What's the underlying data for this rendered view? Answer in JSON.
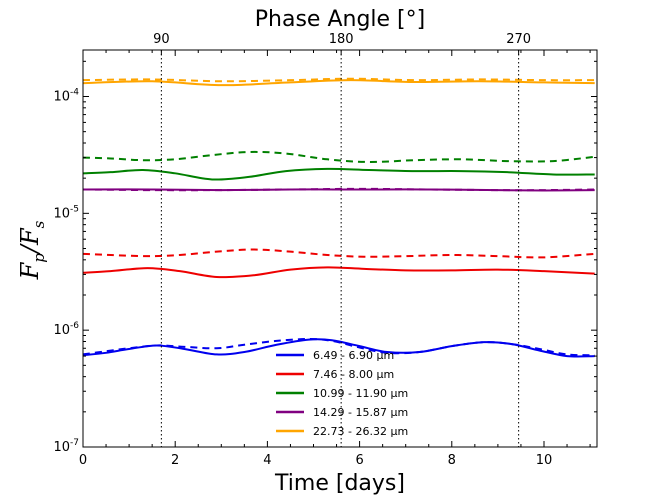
{
  "chart_data": {
    "type": "line",
    "title": "Phase Angle [°]",
    "xlabel": "Time [days]",
    "ylabel": "F_p / F_s",
    "xlim": [
      0,
      11.15
    ],
    "ylim": [
      1e-07,
      0.00025
    ],
    "yscale": "log",
    "xticks": [
      0,
      2,
      4,
      6,
      8,
      10
    ],
    "xtick_labels": [
      "0",
      "2",
      "4",
      "6",
      "8",
      "10"
    ],
    "yticks": [
      1e-07,
      1e-06,
      1e-05,
      0.0001
    ],
    "ytick_labels": [
      {
        "base": "10",
        "exp": "-7"
      },
      {
        "base": "10",
        "exp": "-6"
      },
      {
        "base": "10",
        "exp": "-5"
      },
      {
        "base": "10",
        "exp": "-4"
      }
    ],
    "top_axis": {
      "ticks": [
        {
          "x": 1.7,
          "label": "90"
        },
        {
          "x": 5.6,
          "label": "180"
        },
        {
          "x": 9.45,
          "label": "270"
        }
      ]
    },
    "grid": false,
    "legend_position": "lower-center",
    "series": [
      {
        "name": "6.49 - 6.90 μm",
        "color": "#0000ee",
        "solid": [
          [
            0,
            6.1e-07
          ],
          [
            0.5,
            6.4e-07
          ],
          [
            1,
            6.9e-07
          ],
          [
            1.6,
            7.4e-07
          ],
          [
            2.2,
            6.9e-07
          ],
          [
            2.9,
            6.2e-07
          ],
          [
            3.5,
            6.5e-07
          ],
          [
            4.2,
            7.5e-07
          ],
          [
            4.9,
            8.3e-07
          ],
          [
            5.4,
            8.2e-07
          ],
          [
            6.0,
            7.3e-07
          ],
          [
            6.6,
            6.5e-07
          ],
          [
            7.3,
            6.5e-07
          ],
          [
            8.0,
            7.3e-07
          ],
          [
            8.7,
            7.9e-07
          ],
          [
            9.3,
            7.6e-07
          ],
          [
            9.9,
            6.7e-07
          ],
          [
            10.5,
            6e-07
          ],
          [
            11.1,
            6e-07
          ]
        ],
        "dashed": [
          [
            0,
            6.2e-07
          ],
          [
            0.5,
            6.6e-07
          ],
          [
            1,
            7e-07
          ],
          [
            1.6,
            7.4e-07
          ],
          [
            2.2,
            7.2e-07
          ],
          [
            2.9,
            7e-07
          ],
          [
            3.5,
            7.5e-07
          ],
          [
            4.2,
            8.1e-07
          ],
          [
            4.9,
            8.4e-07
          ],
          [
            5.4,
            8.1e-07
          ],
          [
            6.0,
            7.1e-07
          ],
          [
            6.6,
            6.4e-07
          ],
          [
            7.3,
            6.5e-07
          ],
          [
            8.0,
            7.3e-07
          ],
          [
            8.7,
            7.9e-07
          ],
          [
            9.3,
            7.6e-07
          ],
          [
            9.9,
            6.9e-07
          ],
          [
            10.5,
            6.2e-07
          ],
          [
            11.1,
            6.1e-07
          ]
        ]
      },
      {
        "name": "7.46 - 8.00 μm",
        "color": "#ee0000",
        "solid": [
          [
            0,
            3.1e-06
          ],
          [
            0.6,
            3.2e-06
          ],
          [
            1.4,
            3.4e-06
          ],
          [
            2.1,
            3.2e-06
          ],
          [
            2.9,
            2.85e-06
          ],
          [
            3.7,
            2.95e-06
          ],
          [
            4.5,
            3.3e-06
          ],
          [
            5.3,
            3.45e-06
          ],
          [
            6.1,
            3.35e-06
          ],
          [
            7.0,
            3.25e-06
          ],
          [
            8.0,
            3.25e-06
          ],
          [
            9.0,
            3.3e-06
          ],
          [
            10.0,
            3.2e-06
          ],
          [
            11.1,
            3.05e-06
          ]
        ],
        "dashed": [
          [
            0,
            4.5e-06
          ],
          [
            0.6,
            4.4e-06
          ],
          [
            1.4,
            4.3e-06
          ],
          [
            2.1,
            4.4e-06
          ],
          [
            2.9,
            4.7e-06
          ],
          [
            3.7,
            4.9e-06
          ],
          [
            4.5,
            4.7e-06
          ],
          [
            5.3,
            4.4e-06
          ],
          [
            6.1,
            4.25e-06
          ],
          [
            7.0,
            4.3e-06
          ],
          [
            8.0,
            4.4e-06
          ],
          [
            9.0,
            4.3e-06
          ],
          [
            10.0,
            4.2e-06
          ],
          [
            11.1,
            4.5e-06
          ]
        ]
      },
      {
        "name": "10.99 - 11.90 μm",
        "color": "#008000",
        "solid": [
          [
            0,
            2.2e-05
          ],
          [
            0.6,
            2.25e-05
          ],
          [
            1.3,
            2.35e-05
          ],
          [
            2.0,
            2.2e-05
          ],
          [
            2.8,
            1.95e-05
          ],
          [
            3.6,
            2.05e-05
          ],
          [
            4.4,
            2.3e-05
          ],
          [
            5.3,
            2.4e-05
          ],
          [
            6.2,
            2.35e-05
          ],
          [
            7.2,
            2.3e-05
          ],
          [
            8.2,
            2.3e-05
          ],
          [
            9.2,
            2.25e-05
          ],
          [
            10.2,
            2.15e-05
          ],
          [
            11.1,
            2.15e-05
          ]
        ],
        "dashed": [
          [
            0,
            3e-05
          ],
          [
            0.6,
            2.95e-05
          ],
          [
            1.3,
            2.85e-05
          ],
          [
            2.0,
            2.9e-05
          ],
          [
            2.8,
            3.15e-05
          ],
          [
            3.6,
            3.35e-05
          ],
          [
            4.4,
            3.25e-05
          ],
          [
            5.3,
            2.9e-05
          ],
          [
            6.2,
            2.75e-05
          ],
          [
            7.2,
            2.85e-05
          ],
          [
            8.2,
            2.9e-05
          ],
          [
            9.2,
            2.8e-05
          ],
          [
            10.2,
            2.8e-05
          ],
          [
            11.1,
            3.05e-05
          ]
        ]
      },
      {
        "name": "14.29 - 15.87 μm",
        "color": "#800080",
        "solid": [
          [
            0,
            1.6e-05
          ],
          [
            1.5,
            1.6e-05
          ],
          [
            3.0,
            1.58e-05
          ],
          [
            4.5,
            1.6e-05
          ],
          [
            6.0,
            1.6e-05
          ],
          [
            7.5,
            1.6e-05
          ],
          [
            9.0,
            1.58e-05
          ],
          [
            10.0,
            1.57e-05
          ],
          [
            11.1,
            1.58e-05
          ]
        ],
        "dashed": [
          [
            0,
            1.6e-05
          ],
          [
            1.5,
            1.58e-05
          ],
          [
            3.0,
            1.58e-05
          ],
          [
            4.5,
            1.6e-05
          ],
          [
            6.0,
            1.62e-05
          ],
          [
            7.5,
            1.6e-05
          ],
          [
            9.0,
            1.58e-05
          ],
          [
            10.0,
            1.58e-05
          ],
          [
            11.1,
            1.6e-05
          ]
        ]
      },
      {
        "name": "22.73 - 26.32 μm",
        "color": "#ffa500",
        "solid": [
          [
            0,
            0.00013
          ],
          [
            1.5,
            0.000135
          ],
          [
            3.0,
            0.000125
          ],
          [
            4.5,
            0.000132
          ],
          [
            5.8,
            0.000138
          ],
          [
            7.2,
            0.000133
          ],
          [
            8.6,
            0.000135
          ],
          [
            10.0,
            0.000132
          ],
          [
            11.1,
            0.00013
          ]
        ],
        "dashed": [
          [
            0,
            0.000138
          ],
          [
            1.5,
            0.00014
          ],
          [
            3.0,
            0.000135
          ],
          [
            4.5,
            0.000138
          ],
          [
            5.8,
            0.000142
          ],
          [
            7.2,
            0.000138
          ],
          [
            8.6,
            0.00014
          ],
          [
            10.0,
            0.000138
          ],
          [
            11.1,
            0.000138
          ]
        ]
      }
    ]
  }
}
